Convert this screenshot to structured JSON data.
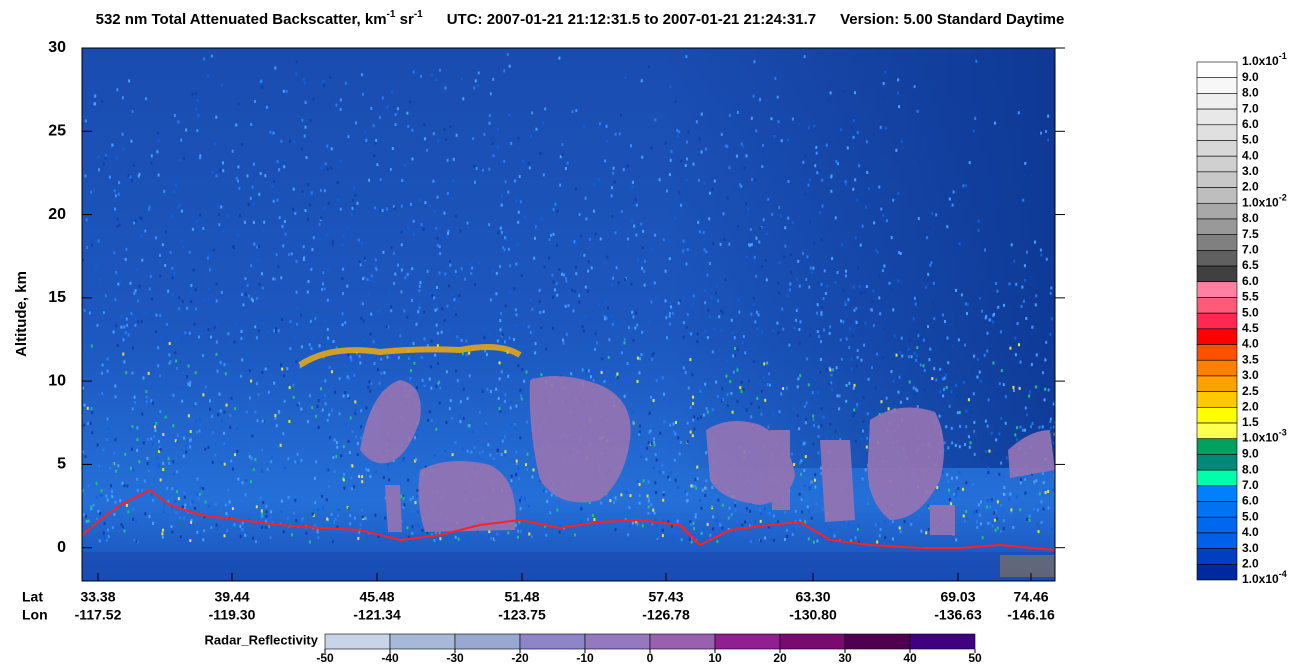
{
  "chart_data": {
    "type": "curtain",
    "title": {
      "main": "532 nm Total Attenuated Backscatter, km",
      "sup1": "-1",
      "unit2": " sr",
      "sup2": "-1",
      "utc": "UTC:  2007-01-21 21:12:31.5  to  2007-01-21 21:24:31.7",
      "version": "Version: 5.00  Standard  Daytime"
    },
    "ylabel": "Altitude, km",
    "ylim": [
      -2,
      30
    ],
    "yticks": [
      0,
      5,
      10,
      15,
      20,
      25,
      30
    ],
    "x_row_labels": [
      "Lat",
      "Lon"
    ],
    "xticks": [
      {
        "lat": "33.38",
        "lon": "-117.52"
      },
      {
        "lat": "39.44",
        "lon": "-119.30"
      },
      {
        "lat": "45.48",
        "lon": "-121.34"
      },
      {
        "lat": "51.48",
        "lon": "-123.75"
      },
      {
        "lat": "57.43",
        "lon": "-126.78"
      },
      {
        "lat": "63.30",
        "lon": "-130.80"
      },
      {
        "lat": "69.03",
        "lon": "-136.63"
      },
      {
        "lat": "74.46",
        "lon": "-146.16"
      }
    ],
    "colorbar": {
      "labels": [
        {
          "text": "1.0x10",
          "sup": "-1"
        },
        "9.0",
        "8.0",
        "7.0",
        "6.0",
        "5.0",
        "4.0",
        "3.0",
        "2.0",
        {
          "text": "1.0x10",
          "sup": "-2"
        },
        "8.0",
        "7.5",
        "7.0",
        "6.5",
        "6.0",
        "5.5",
        "5.0",
        "4.5",
        "4.0",
        "3.5",
        "3.0",
        "2.5",
        "2.0",
        "1.5",
        {
          "text": "1.0x10",
          "sup": "-3"
        },
        "9.0",
        "8.0",
        "7.0",
        "6.0",
        "5.0",
        "4.0",
        "3.0",
        "2.0",
        {
          "text": "1.0x10",
          "sup": "-4"
        }
      ],
      "colors": [
        "#ffffff",
        "#f7f7f7",
        "#efefef",
        "#e8e8e8",
        "#e0e0e0",
        "#d8d8d8",
        "#d0d0d0",
        "#c8c8c8",
        "#bebebe",
        "#a8a8a8",
        "#999999",
        "#808080",
        "#606060",
        "#404040",
        "#ff80a0",
        "#ff5a78",
        "#ff2850",
        "#ff0000",
        "#ff5000",
        "#ff8000",
        "#ffa000",
        "#ffc800",
        "#ffff00",
        "#ffff50",
        "#00a060",
        "#008878",
        "#00ffaa",
        "#0080ff",
        "#0072f4",
        "#0068ee",
        "#0060e8",
        "#0040c0",
        "#0028a0"
      ]
    },
    "radar_colorbar": {
      "title": "Radar_Reflectivity",
      "ticks": [
        -50,
        -40,
        -30,
        -20,
        -10,
        0,
        10,
        20,
        30,
        40,
        50
      ],
      "colors": [
        "#c8d4e8",
        "#a8b8d8",
        "#98a8d0",
        "#8c86c8",
        "#9478c0",
        "#9a60b0",
        "#902090",
        "#780a70",
        "#500050",
        "#400080"
      ]
    }
  }
}
